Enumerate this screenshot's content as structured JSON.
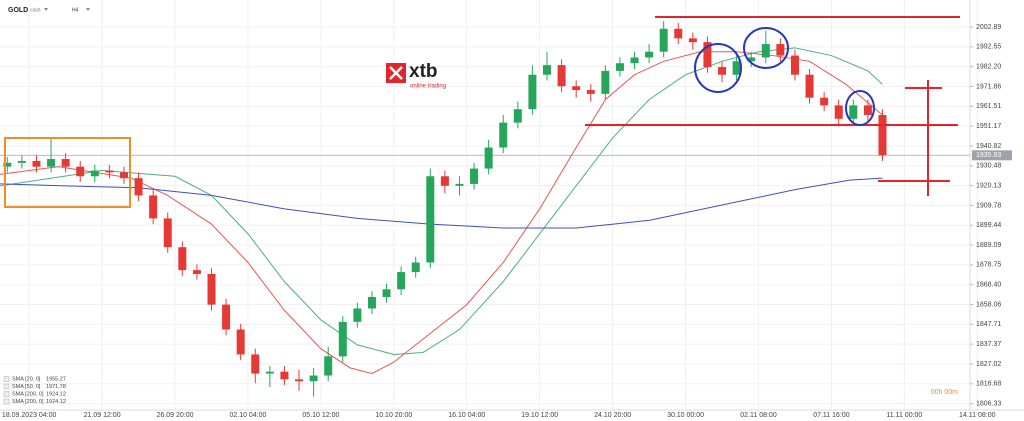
{
  "chart_data": {
    "type": "candlestick",
    "title": "GOLD",
    "subtitle": "cash",
    "timeframe": "H4",
    "brand": "xtb",
    "brand_tagline": "online trading",
    "countdown": "00h 00m",
    "current_price": 1935.93,
    "ylim": [
      1803,
      2017
    ],
    "xlim": [
      -8,
      258
    ],
    "grid": true,
    "up_color": "#26a65b",
    "down_color": "#e53935",
    "yticks": [
      2002.89,
      1992.55,
      {
        "value": 1982.2,
        "label": "1982.20"
      },
      1971.86,
      1961.51,
      1951.17,
      1940.82,
      1930.48,
      1920.13,
      1909.78,
      1899.44,
      1889.09,
      1878.75,
      {
        "value": 1868.4,
        "label": "1868.40"
      },
      1858.06,
      1847.71,
      1837.37,
      1827.02,
      1816.68,
      1806.33
    ],
    "xticks": [
      {
        "value": 0,
        "label": "18.09.2023 04:00"
      },
      {
        "value": 20,
        "label": "21.09 12:00"
      },
      {
        "value": 40,
        "label": "26.09 20:00"
      },
      {
        "value": 60,
        "label": "02.10 04:00"
      },
      {
        "value": 80,
        "label": "05.10 12:00"
      },
      {
        "value": 100,
        "label": "10.10 20:00"
      },
      {
        "value": 120,
        "label": "16.10 04:00"
      },
      {
        "value": 140,
        "label": "19.10 12:00"
      },
      {
        "value": 160,
        "label": "24.10 20:00"
      },
      {
        "value": 180,
        "label": "30.10 00:00"
      },
      {
        "value": 200,
        "label": "02.11 08:00"
      },
      {
        "value": 220,
        "label": "07.11 16:00"
      },
      {
        "value": 240,
        "label": "11.11 00:00"
      },
      {
        "value": 260,
        "label": "14.11 08:00"
      }
    ],
    "x": [
      -6,
      -2,
      2,
      6,
      10,
      14,
      18,
      22,
      26,
      30,
      34,
      38,
      42,
      46,
      50,
      54,
      58,
      62,
      66,
      70,
      74,
      78,
      82,
      86,
      90,
      94,
      98,
      102,
      106,
      110,
      114,
      118,
      122,
      126,
      130,
      134,
      138,
      142,
      146,
      150,
      154,
      158,
      162,
      166,
      170,
      174,
      178,
      182,
      186,
      190,
      194,
      198,
      202,
      206,
      210,
      214,
      218,
      222,
      226,
      230,
      234
    ],
    "open": [
      1930,
      1932,
      1933,
      1930,
      1934,
      1930,
      1925,
      1928,
      1927,
      1924,
      1915,
      1903,
      1888,
      1876,
      1874,
      1858,
      1845,
      1832,
      1822,
      1823,
      1819,
      1818,
      1821,
      1831,
      1849,
      1856,
      1862,
      1866,
      1875,
      1880,
      1925,
      1920,
      1921,
      1929,
      1940,
      1953,
      1960,
      1978,
      1983,
      1972,
      1970,
      1968,
      1980,
      1984,
      1987,
      1990,
      2002,
      1997,
      1995,
      1982,
      1978,
      1985,
      1987,
      1994,
      1988,
      1978,
      1966,
      1962,
      1955,
      1962,
      1957
    ],
    "high": [
      1935,
      1936,
      1936,
      1945,
      1937,
      1933,
      1931,
      1931,
      1930,
      1927,
      1918,
      1906,
      1891,
      1879,
      1877,
      1861,
      1848,
      1835,
      1826,
      1826,
      1824,
      1825,
      1836,
      1852,
      1859,
      1865,
      1869,
      1878,
      1883,
      1929,
      1928,
      1925,
      1932,
      1944,
      1957,
      1964,
      1983,
      1990,
      1986,
      1975,
      1973,
      1983,
      1987,
      1990,
      1994,
      2006,
      2005,
      2000,
      1998,
      1985,
      1988,
      1990,
      2001,
      1997,
      1991,
      1981,
      1969,
      1965,
      1965,
      1965,
      1960
    ],
    "low": [
      1927,
      1929,
      1927,
      1927,
      1927,
      1922,
      1922,
      1924,
      1921,
      1912,
      1900,
      1885,
      1873,
      1871,
      1855,
      1842,
      1829,
      1817,
      1815,
      1816,
      1813,
      1810,
      1818,
      1828,
      1846,
      1853,
      1859,
      1863,
      1872,
      1877,
      1916,
      1915,
      1918,
      1926,
      1937,
      1950,
      1957,
      1975,
      1969,
      1966,
      1964,
      1965,
      1977,
      1981,
      1984,
      1987,
      1994,
      1991,
      1979,
      1974,
      1975,
      1982,
      1984,
      1985,
      1975,
      1963,
      1959,
      1951,
      1952,
      1954,
      1933
    ],
    "close": [
      1932,
      1933,
      1930,
      1934,
      1930,
      1925,
      1928,
      1927,
      1924,
      1915,
      1903,
      1888,
      1876,
      1874,
      1858,
      1845,
      1832,
      1822,
      1823,
      1819,
      1818,
      1821,
      1831,
      1849,
      1856,
      1862,
      1866,
      1875,
      1880,
      1925,
      1920,
      1921,
      1929,
      1940,
      1953,
      1960,
      1978,
      1983,
      1972,
      1970,
      1968,
      1980,
      1984,
      1987,
      1990,
      2002,
      1997,
      1995,
      1982,
      1978,
      1985,
      1987,
      1994,
      1988,
      1978,
      1966,
      1962,
      1955,
      1962,
      1957,
      1936
    ],
    "series": [
      {
        "color": "#e8574f",
        "x": [
          -8,
          8,
          28,
          38,
          50,
          60,
          70,
          80,
          88,
          94,
          100,
          110,
          120,
          130,
          140,
          150,
          158,
          166,
          174,
          184,
          194,
          204,
          214,
          224,
          234
        ],
        "values": [
          1926,
          1930,
          1924,
          1915,
          1900,
          1880,
          1855,
          1835,
          1825,
          1822,
          1828,
          1843,
          1858,
          1880,
          1908,
          1940,
          1965,
          1978,
          1985,
          1990,
          1990,
          1988,
          1985,
          1973,
          1957
        ]
      },
      {
        "color": "#4caf7d",
        "x": [
          -8,
          20,
          40,
          50,
          60,
          70,
          80,
          90,
          100,
          108,
          118,
          130,
          140,
          150,
          160,
          170,
          180,
          190,
          200,
          210,
          220,
          230,
          234
        ],
        "values": [
          1920,
          1928,
          1925,
          1915,
          1895,
          1870,
          1850,
          1837,
          1832,
          1833,
          1845,
          1870,
          1895,
          1920,
          1945,
          1965,
          1978,
          1985,
          1990,
          1992,
          1988,
          1980,
          1973
        ]
      },
      {
        "color": "#3f51b5",
        "x": [
          -8,
          10,
          30,
          50,
          70,
          90,
          110,
          130,
          150,
          170,
          190,
          210,
          225,
          234
        ],
        "values": [
          1921,
          1920,
          1919,
          1915,
          1908,
          1903,
          1900,
          1898,
          1898,
          1902,
          1910,
          1918,
          1923,
          1924
        ]
      }
    ],
    "indicators": [
      {
        "name": "SMA [20, 0]",
        "value": 1955.27
      },
      {
        "name": "SMA [50, 0]",
        "value": 1971.78
      },
      {
        "name": "SMA [200, 0]",
        "value": 1924.12
      },
      {
        "name": "SMA [200, 0]",
        "value": 1924.12
      }
    ]
  }
}
